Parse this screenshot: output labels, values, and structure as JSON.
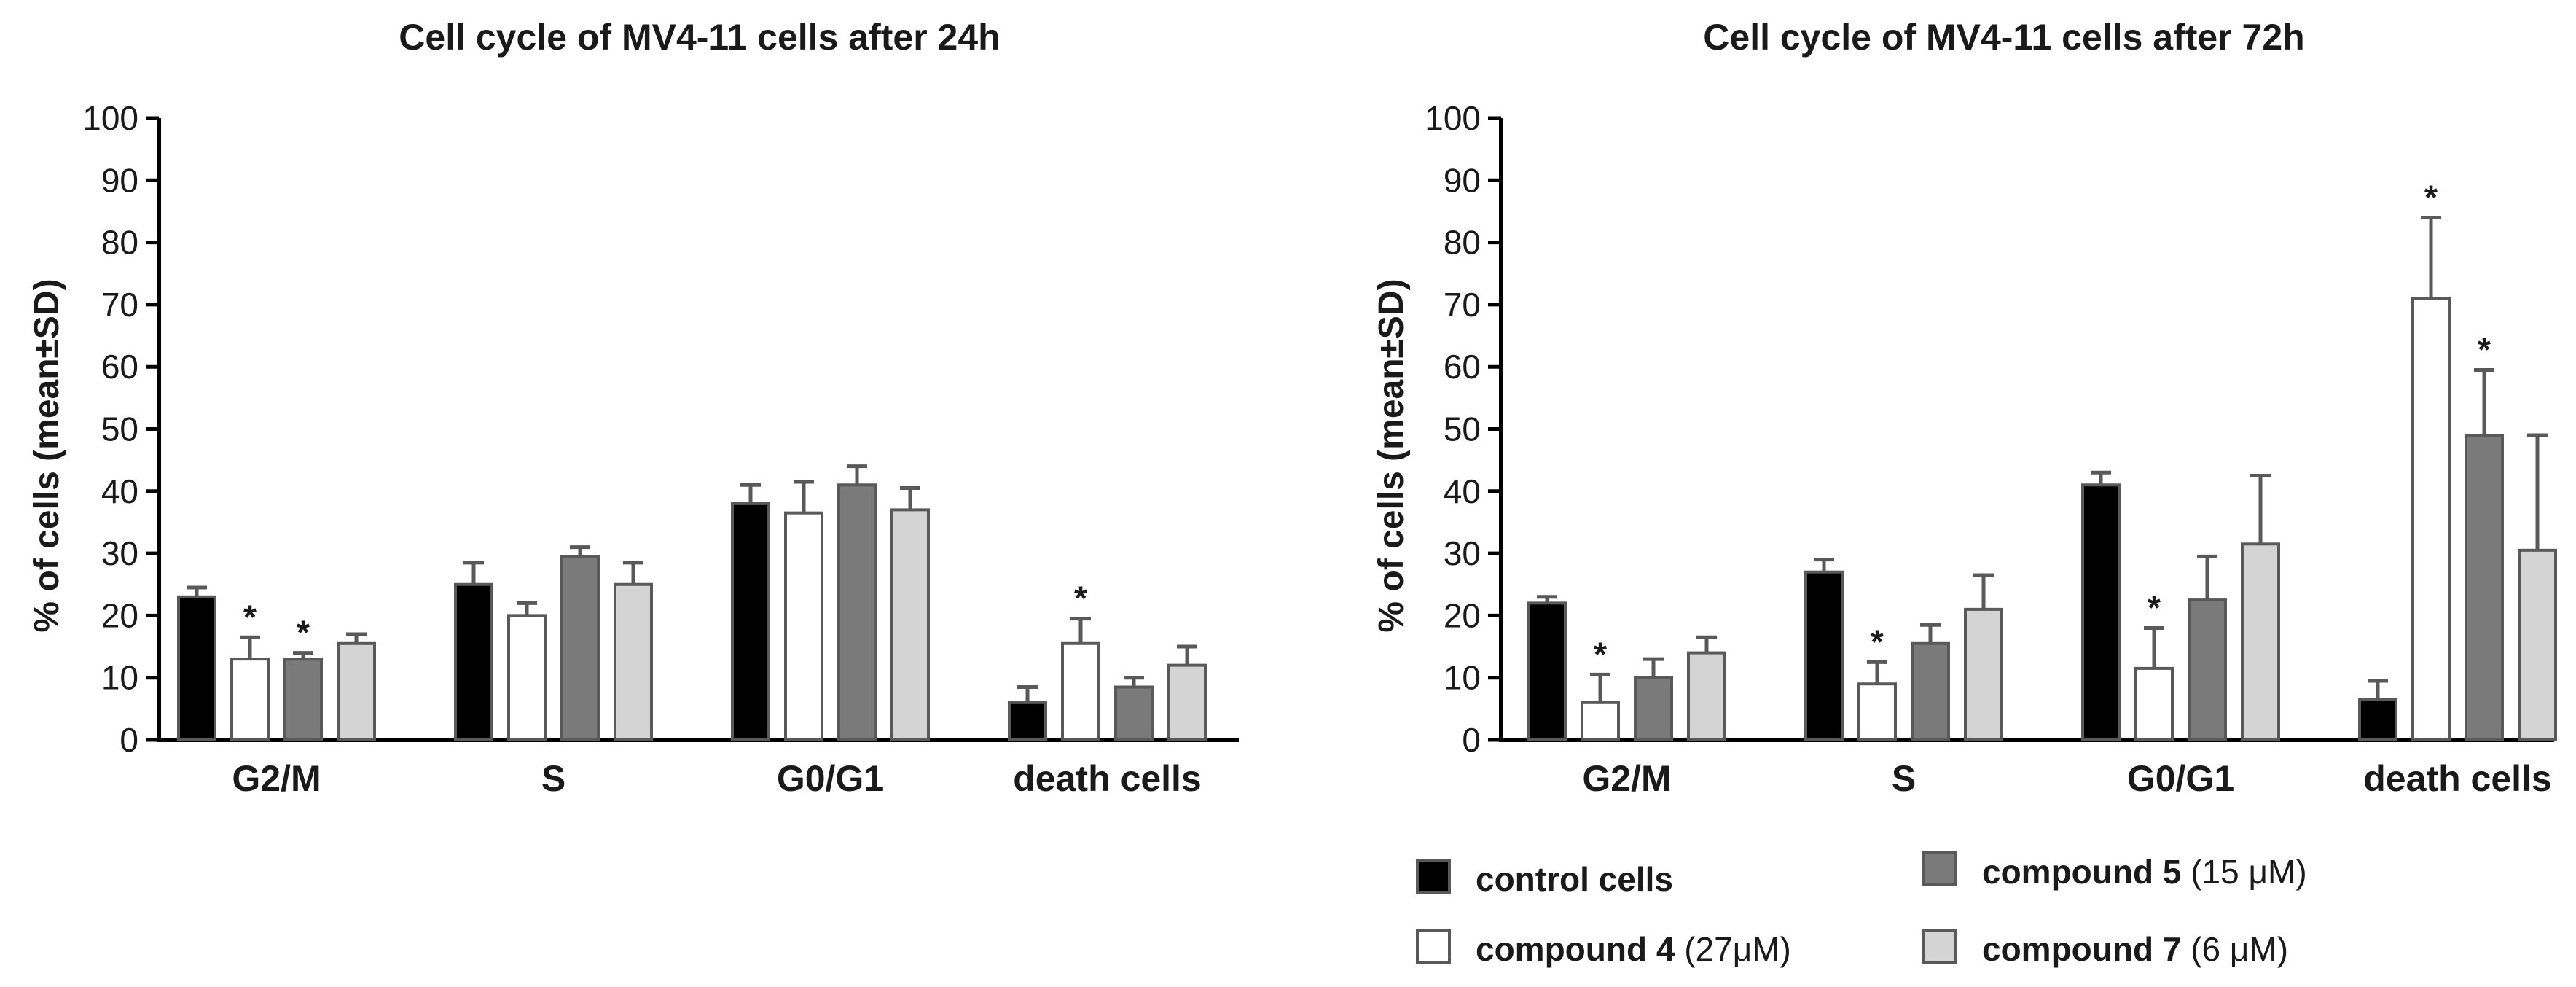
{
  "legend": {
    "items": [
      {
        "bold": "control cells",
        "suffix": "",
        "fill": "#000000"
      },
      {
        "bold": "compound 4",
        "suffix": " (27μM)",
        "fill": "#ffffff"
      },
      {
        "bold": "compound 5",
        "suffix": " (15 μM)",
        "fill": "#7a7a7a"
      },
      {
        "bold": "compound 7",
        "suffix": " (6 μM)",
        "fill": "#d4d4d4"
      }
    ]
  },
  "colors": {
    "edge": "#595959",
    "control": "#000000",
    "c4": "#ffffff",
    "c5": "#7a7a7a",
    "c7": "#d4d4d4"
  },
  "chart_data": [
    {
      "type": "bar",
      "title": "Cell cycle of MV4-11 cells after 24h",
      "xlabel": "",
      "ylabel": "% of cells (mean±SD)",
      "ylim": [
        0,
        100
      ],
      "yticks": [
        "0",
        "10",
        "20",
        "30",
        "40",
        "50",
        "60",
        "70",
        "80",
        "90",
        "100"
      ],
      "categories": [
        "G2/M",
        "S",
        "G0/G1",
        "death cells"
      ],
      "series": [
        {
          "name": "control cells",
          "values": [
            23,
            25,
            38,
            6
          ],
          "sd": [
            1.5,
            3.5,
            3,
            2.5
          ],
          "stars": [
            false,
            false,
            false,
            false
          ]
        },
        {
          "name": "compound 4 (27μM)",
          "values": [
            13,
            20,
            36.5,
            15.5
          ],
          "sd": [
            3.5,
            2,
            5,
            4
          ],
          "stars": [
            true,
            false,
            false,
            true
          ]
        },
        {
          "name": "compound 5 (15 μM)",
          "values": [
            13,
            29.5,
            41,
            8.5
          ],
          "sd": [
            1,
            1.5,
            3,
            1.5
          ],
          "stars": [
            true,
            false,
            false,
            false
          ]
        },
        {
          "name": "compound 7 (6 μM)",
          "values": [
            15.5,
            25,
            37,
            12
          ],
          "sd": [
            1.5,
            3.5,
            3.5,
            3
          ],
          "stars": [
            false,
            false,
            false,
            false
          ]
        }
      ]
    },
    {
      "type": "bar",
      "title": "Cell cycle of MV4-11 cells after 72h",
      "xlabel": "",
      "ylabel": "% of cells (mean±SD)",
      "ylim": [
        0,
        100
      ],
      "yticks": [
        "0",
        "10",
        "20",
        "30",
        "40",
        "50",
        "60",
        "70",
        "80",
        "90",
        "100"
      ],
      "categories": [
        "G2/M",
        "S",
        "G0/G1",
        "death cells"
      ],
      "series": [
        {
          "name": "control cells",
          "values": [
            22,
            27,
            41,
            6.5
          ],
          "sd": [
            1,
            2,
            2,
            3
          ],
          "stars": [
            false,
            false,
            false,
            false
          ]
        },
        {
          "name": "compound 4 (27μM)",
          "values": [
            6,
            9,
            11.5,
            71
          ],
          "sd": [
            4.5,
            3.5,
            6.5,
            13
          ],
          "stars": [
            true,
            true,
            true,
            true
          ]
        },
        {
          "name": "compound 5 (15 μM)",
          "values": [
            10,
            15.5,
            22.5,
            49
          ],
          "sd": [
            3,
            3,
            7,
            10.5
          ],
          "stars": [
            false,
            false,
            false,
            true
          ]
        },
        {
          "name": "compound 7 (6 μM)",
          "values": [
            14,
            21,
            31.5,
            30.5
          ],
          "sd": [
            2.5,
            5.5,
            11,
            18.5
          ],
          "stars": [
            false,
            false,
            false,
            false
          ]
        }
      ]
    }
  ]
}
